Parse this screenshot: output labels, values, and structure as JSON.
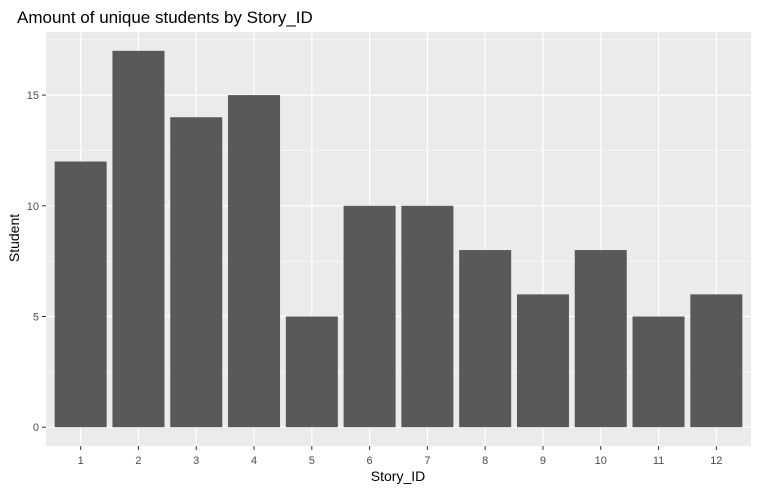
{
  "chart_data": {
    "type": "bar",
    "title": "Amount of unique students by Story_ID",
    "xlabel": "Story_ID",
    "ylabel": "Student",
    "categories": [
      "1",
      "2",
      "3",
      "4",
      "5",
      "6",
      "7",
      "8",
      "9",
      "10",
      "11",
      "12"
    ],
    "values": [
      12,
      17,
      14,
      15,
      5,
      10,
      10,
      8,
      6,
      8,
      5,
      6
    ],
    "ylim": [
      -0.85,
      17.85
    ],
    "yticks": [
      0,
      5,
      10,
      15
    ],
    "ytick_labels": [
      "0",
      "5",
      "10",
      "15"
    ],
    "grid": true,
    "colors": {
      "panel": "#ebebeb",
      "grid_major": "#ffffff",
      "bar": "#595959",
      "tick_text": "#4d4d4d",
      "axis_title": "#000000",
      "tick_mark": "#333333"
    }
  }
}
